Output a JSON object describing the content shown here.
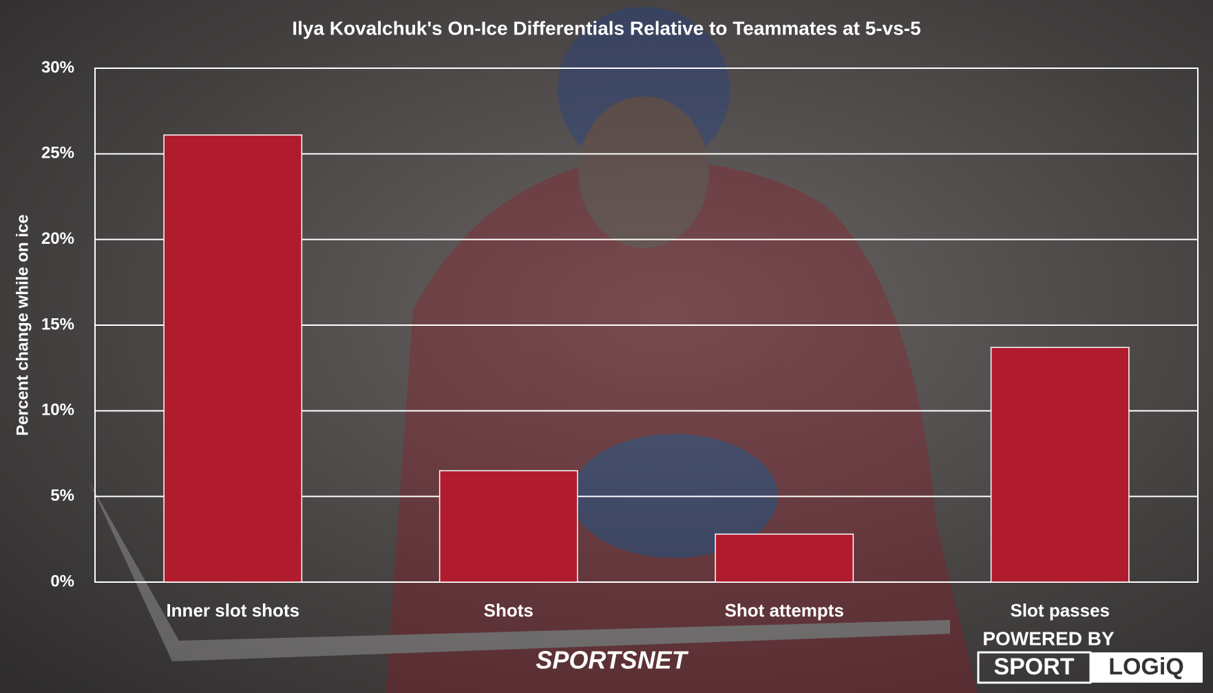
{
  "chart_data": {
    "type": "bar",
    "title": "Ilya Kovalchuk's On-Ice Differentials Relative to Teammates at 5-vs-5",
    "y_label": "Percent change while on ice",
    "categories": [
      "Inner slot shots",
      "Shots",
      "Shot attempts",
      "Slot passes"
    ],
    "values": [
      26.1,
      6.5,
      2.8,
      13.7
    ],
    "color": "#b01c2e",
    "ylim": [
      0,
      30
    ],
    "yticks": [
      {
        "value": 0,
        "label": "0%"
      },
      {
        "value": 5,
        "label": "5%"
      },
      {
        "value": 10,
        "label": "10%"
      },
      {
        "value": 15,
        "label": "15%"
      },
      {
        "value": 20,
        "label": "20%"
      },
      {
        "value": 25,
        "label": "25%"
      },
      {
        "value": 30,
        "label": "30%"
      }
    ],
    "grid": true
  },
  "branding": {
    "network": "SPORTSNET",
    "powered_by": "POWERED BY",
    "partner_left": "SPORT",
    "partner_right": "LOGiQ"
  }
}
